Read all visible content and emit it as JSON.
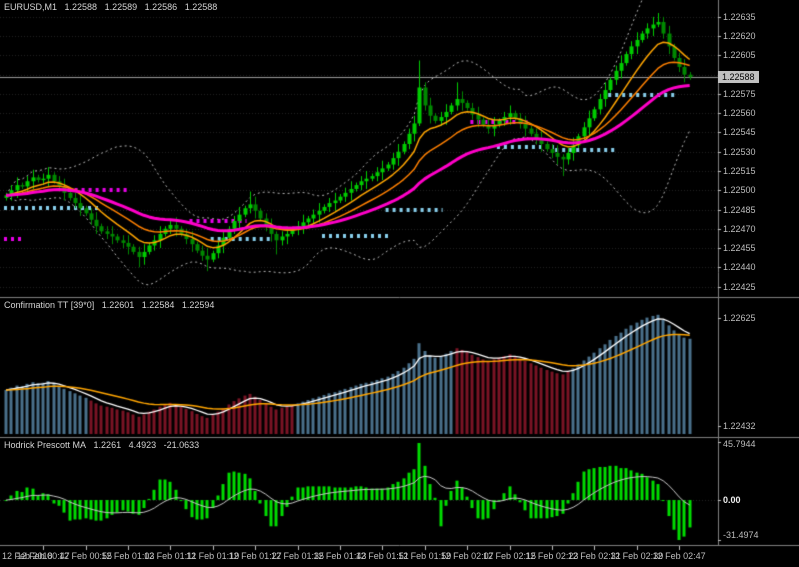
{
  "header": {
    "symbol": "EURUSD,M1",
    "open": "1.22588",
    "high": "1.22589",
    "low": "1.22586",
    "close": "1.22588"
  },
  "indicators": {
    "confirmation": {
      "title": "Confirmation TT [39*0]",
      "v1": "1.22601",
      "v2": "1.22584",
      "v3": "1.22594"
    },
    "hodrick": {
      "title": "Hodrick Prescott MA",
      "v1": "1.2261",
      "v2": "4.4923",
      "v3": "-21.0633"
    }
  },
  "colors": {
    "background": "#000000",
    "grid": "#232323",
    "separator": "#808080",
    "axis_text": "#BEBEBE",
    "bid_line": "#9A9A9A",
    "badge_bg": "#C0C0C0",
    "badge_text": "#000000",
    "bull": "#00CC00",
    "bear": "#008800",
    "level_blue": "#87CEEB",
    "level_magenta": "#E800E8",
    "header_text": "#D4D4D4"
  },
  "time_axis": {
    "labels": [
      {
        "m": -1,
        "text": "12 Feb 2018"
      },
      {
        "m": 7,
        "text": "12 Feb 00:47"
      },
      {
        "m": 15,
        "text": "12 Feb 00:55"
      },
      {
        "m": 23,
        "text": "12 Feb 01:03"
      },
      {
        "m": 31,
        "text": "12 Feb 01:11"
      },
      {
        "m": 39,
        "text": "12 Feb 01:19"
      },
      {
        "m": 47,
        "text": "12 Feb 01:27"
      },
      {
        "m": 55,
        "text": "12 Feb 01:35"
      },
      {
        "m": 63,
        "text": "12 Feb 01:43"
      },
      {
        "m": 71,
        "text": "12 Feb 01:51"
      },
      {
        "m": 79,
        "text": "12 Feb 01:59"
      },
      {
        "m": 87,
        "text": "12 Feb 02:07"
      },
      {
        "m": 95,
        "text": "12 Feb 02:15"
      },
      {
        "m": 103,
        "text": "12 Feb 02:23"
      },
      {
        "m": 111,
        "text": "12 Feb 02:31"
      },
      {
        "m": 119,
        "text": "12 Feb 02:39"
      },
      {
        "m": 127,
        "text": "12 Feb 02:47"
      }
    ]
  },
  "chart_data": [
    {
      "type": "candlestick",
      "title": "EURUSD,M1",
      "start_time": "12 Feb 00:40",
      "interval_minutes": 1,
      "n_bars": 130,
      "closes": [
        1.22496,
        1.225,
        1.22504,
        1.22503,
        1.22507,
        1.2251,
        1.22508,
        1.22509,
        1.22512,
        1.22507,
        1.22503,
        1.22498,
        1.22494,
        1.2249,
        1.22486,
        1.22482,
        1.22477,
        1.22472,
        1.22468,
        1.22466,
        1.22464,
        1.22461,
        1.22459,
        1.22456,
        1.22452,
        1.22448,
        1.22452,
        1.22457,
        1.22461,
        1.22466,
        1.2247,
        1.22473,
        1.2247,
        1.22466,
        1.22462,
        1.22458,
        1.22453,
        1.22449,
        1.22446,
        1.22451,
        1.22457,
        1.22463,
        1.2247,
        1.22476,
        1.22481,
        1.22486,
        1.22489,
        1.22484,
        1.22478,
        1.22472,
        1.22466,
        1.22461,
        1.22464,
        1.22466,
        1.22469,
        1.22472,
        1.22475,
        1.22478,
        1.22481,
        1.22484,
        1.22487,
        1.2249,
        1.22492,
        1.22495,
        1.22498,
        1.22501,
        1.22504,
        1.22507,
        1.22509,
        1.22511,
        1.22514,
        1.22517,
        1.2252,
        1.22525,
        1.2253,
        1.22536,
        1.22544,
        1.22552,
        1.2258,
        1.22566,
        1.22558,
        1.22554,
        1.22557,
        1.22561,
        1.22566,
        1.22571,
        1.22568,
        1.22564,
        1.22559,
        1.22555,
        1.22551,
        1.22548,
        1.22551,
        1.22554,
        1.22557,
        1.2256,
        1.22556,
        1.22552,
        1.22548,
        1.22544,
        1.2254,
        1.22536,
        1.22532,
        1.22529,
        1.22526,
        1.22524,
        1.22529,
        1.22535,
        1.22542,
        1.22549,
        1.22556,
        1.22563,
        1.22571,
        1.22578,
        1.22586,
        1.22593,
        1.22599,
        1.22606,
        1.22612,
        1.22617,
        1.22622,
        1.22626,
        1.22629,
        1.22631,
        1.22622,
        1.22612,
        1.22603,
        1.22596,
        1.2259,
        1.22588
      ],
      "wick_spikes": [
        {
          "i": 25,
          "low": 1.2244
        },
        {
          "i": 38,
          "low": 1.22437
        },
        {
          "i": 46,
          "high": 1.22499
        },
        {
          "i": 51,
          "low": 1.2245
        },
        {
          "i": 78,
          "high": 1.22601
        },
        {
          "i": 85,
          "high": 1.22584
        },
        {
          "i": 105,
          "low": 1.22511
        },
        {
          "i": 123,
          "high": 1.22638
        },
        {
          "i": 129,
          "low": 1.22586
        }
      ],
      "y_axis": {
        "min": 1.2242,
        "max": 1.22645,
        "tick_start": 1.22425,
        "tick_step": 0.00015,
        "tick_count": 15
      },
      "current_price": 1.22588,
      "current_price_label": "1.22588",
      "bollinger": {
        "period": 20,
        "deviation": 2.5,
        "color": "#B8B8B8",
        "style": "dotted"
      },
      "moving_averages": [
        {
          "name": "ma-fast-orange",
          "period": 9,
          "color": "#FFA500",
          "width": 1.5
        },
        {
          "name": "ma-mid-orange",
          "period": 18,
          "color": "#FF8000",
          "width": 1.5
        },
        {
          "name": "ma-slow-magenta",
          "period": 36,
          "color": "#FF00C8",
          "width": 3
        }
      ],
      "levels": [
        {
          "from": 0,
          "to": 3,
          "price": 1.22462,
          "color": "magenta"
        },
        {
          "from": 0,
          "to": 17,
          "price": 1.22486,
          "color": "blue"
        },
        {
          "from": 12,
          "to": 23,
          "price": 1.225,
          "color": "magenta"
        },
        {
          "from": 35,
          "to": 45,
          "price": 1.22476,
          "color": "magenta"
        },
        {
          "from": 39,
          "to": 50,
          "price": 1.22462,
          "color": "blue"
        },
        {
          "from": 60,
          "to": 72,
          "price": 1.22464,
          "color": "blue"
        },
        {
          "from": 72,
          "to": 82,
          "price": 1.22485,
          "color": "blue"
        },
        {
          "from": 88,
          "to": 98,
          "price": 1.22553,
          "color": "magenta"
        },
        {
          "from": 93,
          "to": 103,
          "price": 1.22534,
          "color": "blue"
        },
        {
          "from": 104,
          "to": 115,
          "price": 1.22531,
          "color": "blue"
        },
        {
          "from": 114,
          "to": 126,
          "price": 1.22574,
          "color": "blue"
        }
      ]
    },
    {
      "type": "bar",
      "title": "Confirmation TT [39*0]",
      "panel": "indicator-1",
      "y_axis": {
        "min": 1.22417,
        "max": 1.22654,
        "ticks": [
          1.22625,
          1.22432
        ]
      },
      "color_segments": [
        {
          "from": 0,
          "to": 15,
          "color": "#4A708B"
        },
        {
          "from": 16,
          "to": 54,
          "color": "#7A1424"
        },
        {
          "from": 55,
          "to": 84,
          "color": "#4A708B"
        },
        {
          "from": 85,
          "to": 106,
          "color": "#7A1424"
        },
        {
          "from": 107,
          "to": 129,
          "color": "#4A708B"
        }
      ],
      "lines": [
        {
          "name": "tt-line-white",
          "period": 5,
          "color": "#FFFFFF",
          "width": 1.3
        },
        {
          "name": "tt-line-orange",
          "period": 21,
          "color": "#FFA500",
          "width": 1.5
        }
      ]
    },
    {
      "type": "bar",
      "title": "Hodrick Prescott MA",
      "panel": "indicator-2",
      "transform": "4-bar momentum of close (pips)",
      "scale": 0.9,
      "bar_color": "#00DC00",
      "line": {
        "name": "hp-ma-line",
        "period": 15,
        "color": "#C8C8C8"
      },
      "y_axis": {
        "min": -31.4974,
        "max": 45.7944,
        "ticks": [
          45.7944,
          0,
          -31.4974
        ],
        "tick_labels": [
          "45.7944",
          "0.00",
          "-31.4974"
        ]
      }
    }
  ]
}
